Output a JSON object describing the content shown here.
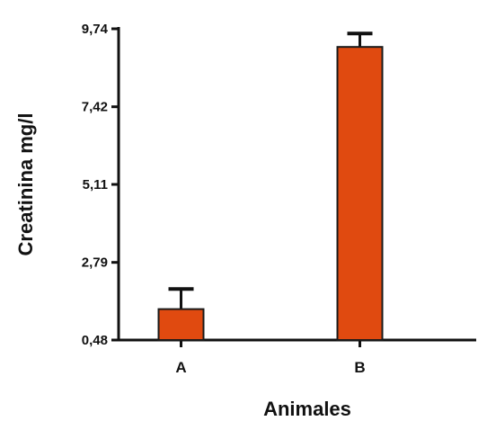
{
  "chart_data": {
    "type": "bar",
    "title": "",
    "xlabel": "Animales",
    "ylabel": "Creatinina mg/l",
    "categories": [
      "A",
      "B"
    ],
    "values": [
      1.4,
      9.2
    ],
    "error_upper": [
      2.0,
      9.6
    ],
    "yticks": [
      0.48,
      2.79,
      5.11,
      7.42,
      9.74
    ],
    "ytick_labels": [
      "0,48",
      "2,79",
      "5,11",
      "7,42",
      "9,74"
    ],
    "ylim": [
      0.48,
      9.74
    ],
    "grid": false,
    "bar_color": "#e04a10",
    "bar_edge_color": "#1a1a1a"
  }
}
